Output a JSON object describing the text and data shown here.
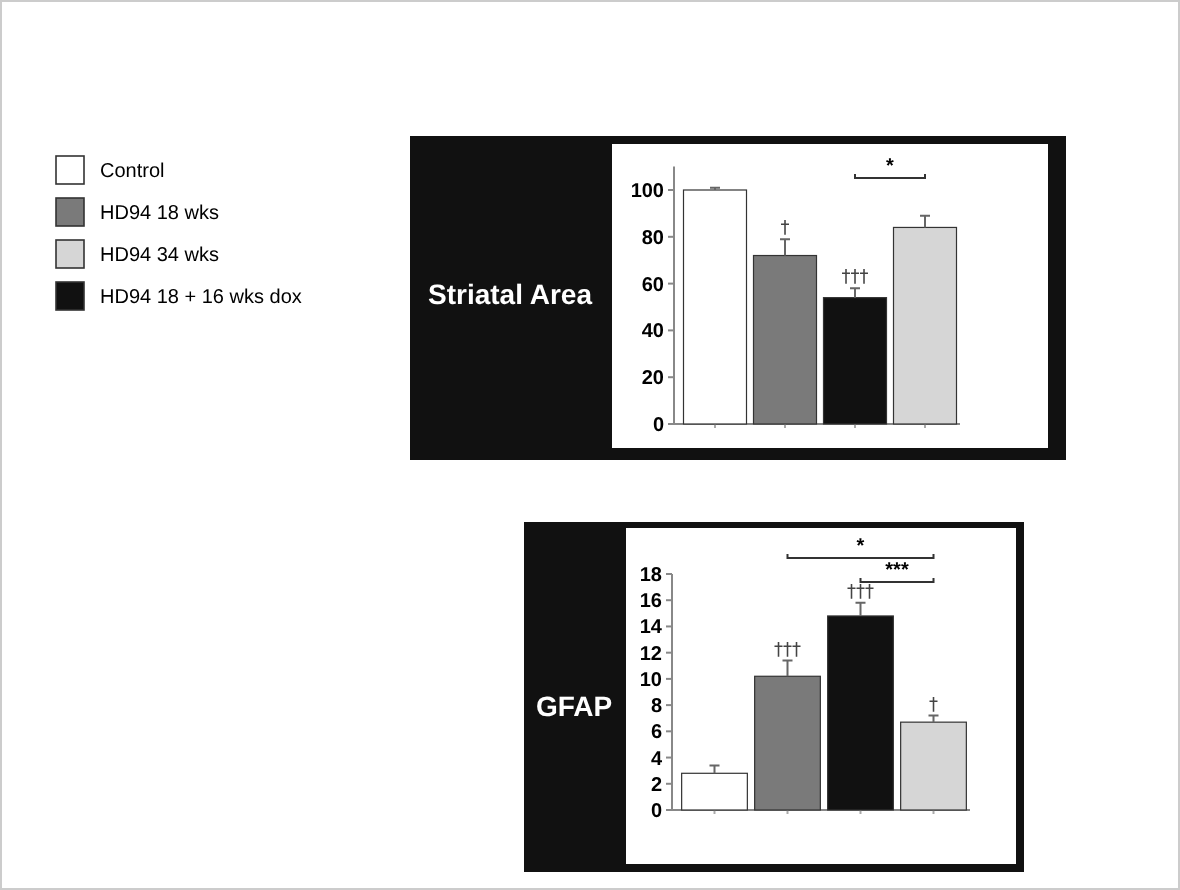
{
  "chart_data": [
    {
      "type": "bar",
      "title": "Striatal Area",
      "categories": [
        null,
        null,
        null,
        null
      ],
      "ylim": [
        0,
        110
      ],
      "yticks": [
        0,
        20,
        40,
        60,
        80,
        100
      ],
      "legend": "left",
      "series": [
        {
          "name": "Control",
          "color": "#ffffff",
          "values": [
            100,
            null,
            null,
            null
          ],
          "errors": [
            1,
            null,
            null,
            null
          ],
          "value_labels": [
            null,
            null,
            null,
            null
          ]
        },
        {
          "name": "HD94 18 wks",
          "color": "#7a7a7a",
          "values": [
            null,
            72,
            null,
            null
          ],
          "errors": [
            null,
            7,
            null,
            null
          ],
          "value_labels": [
            null,
            "†",
            null,
            null
          ]
        },
        {
          "name": "HD94 34 wks",
          "color": "#d6d6d6",
          "values": [
            null,
            null,
            null,
            84
          ],
          "errors": [
            null,
            null,
            null,
            5
          ],
          "value_labels": [
            null,
            null,
            null,
            null
          ]
        },
        {
          "name": "HD94 18 + 16 wks dox",
          "color": "#111111",
          "values": [
            null,
            null,
            54,
            null
          ],
          "errors": [
            null,
            null,
            4,
            null
          ],
          "value_labels": [
            null,
            null,
            "†††",
            null
          ]
        }
      ],
      "annotations": [
        "*"
      ]
    },
    {
      "type": "bar",
      "title": "GFAP",
      "categories": [
        null,
        null,
        null,
        null
      ],
      "ylim": [
        0,
        18
      ],
      "yticks": [
        0,
        2,
        4,
        6,
        8,
        10,
        12,
        14,
        16,
        18
      ],
      "legend": false,
      "series": [
        {
          "color": "#ffffff",
          "values": [
            2.8,
            null,
            null,
            null
          ],
          "errors": [
            0.6,
            null,
            null,
            null
          ],
          "value_labels": [
            null,
            null,
            null,
            null
          ]
        },
        {
          "color": "#7a7a7a",
          "values": [
            null,
            10.2,
            null,
            null
          ],
          "errors": [
            null,
            1.2,
            null,
            null
          ],
          "value_labels": [
            null,
            "†††",
            null,
            null
          ]
        },
        {
          "color": "#d6d6d6",
          "values": [
            null,
            null,
            null,
            6.7
          ],
          "errors": [
            null,
            null,
            null,
            0.5
          ],
          "value_labels": [
            null,
            null,
            null,
            "†"
          ]
        },
        {
          "color": "#111111",
          "values": [
            null,
            null,
            14.8,
            null
          ],
          "errors": [
            null,
            null,
            1,
            null
          ],
          "value_labels": [
            null,
            null,
            "†††",
            null
          ]
        }
      ],
      "annotations": [
        "*",
        "***"
      ]
    }
  ]
}
